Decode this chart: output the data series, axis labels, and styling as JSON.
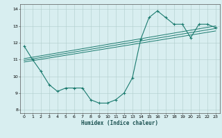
{
  "xlabel": "Humidex (Indice chaleur)",
  "bg_color": "#d8eef0",
  "grid_color": "#b0cccc",
  "line_color": "#1a7a6e",
  "xlim": [
    -0.5,
    23.5
  ],
  "ylim": [
    7.8,
    14.3
  ],
  "xticks": [
    0,
    1,
    2,
    3,
    4,
    5,
    6,
    7,
    8,
    9,
    10,
    11,
    12,
    13,
    14,
    15,
    16,
    17,
    18,
    19,
    20,
    21,
    22,
    23
  ],
  "yticks": [
    8,
    9,
    10,
    11,
    12,
    13,
    14
  ],
  "curve_x": [
    0,
    1,
    2,
    3,
    4,
    5,
    6,
    7,
    8,
    9,
    10,
    11,
    12,
    13,
    14,
    15,
    16,
    17,
    18,
    19,
    20,
    21,
    22,
    23
  ],
  "curve_y": [
    11.8,
    11.0,
    10.3,
    9.5,
    9.1,
    9.3,
    9.3,
    9.3,
    8.6,
    8.4,
    8.4,
    8.6,
    9.0,
    9.9,
    12.2,
    13.5,
    13.9,
    13.5,
    13.1,
    13.1,
    12.3,
    13.1,
    13.1,
    12.9
  ],
  "line1_x": [
    0,
    23
  ],
  "line1_y": [
    10.85,
    12.7
  ],
  "line2_x": [
    0,
    23
  ],
  "line2_y": [
    10.95,
    12.85
  ],
  "line3_x": [
    0,
    23
  ],
  "line3_y": [
    11.05,
    13.0
  ]
}
